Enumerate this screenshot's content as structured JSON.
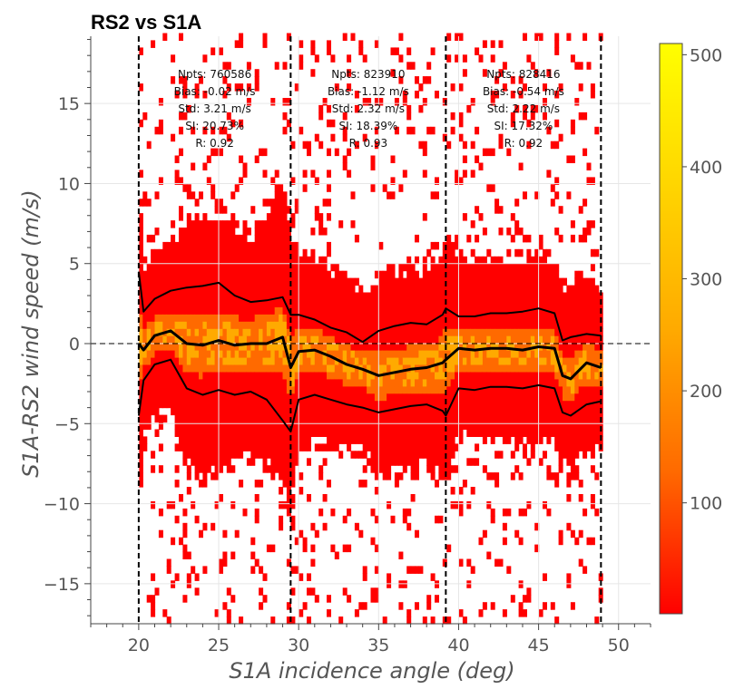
{
  "chart_data": {
    "type": "heatmap",
    "title": "RS2 vs S1A",
    "xlabel": "S1A incidence angle (deg)",
    "ylabel": "S1A-RS2 wind speed (m/s)",
    "xlim": [
      17,
      52
    ],
    "ylim": [
      -17.5,
      19.2
    ],
    "x_ticks": [
      20,
      25,
      30,
      35,
      40,
      45,
      50
    ],
    "y_ticks": [
      -15,
      -10,
      -5,
      0,
      5,
      10,
      15
    ],
    "grid": true,
    "colorbar": {
      "range": [
        1,
        510
      ],
      "ticks": [
        100,
        200,
        300,
        400,
        500
      ],
      "colormap": [
        "#ff0000",
        "#ff6a00",
        "#ffaa00",
        "#ffd500",
        "#ffff00"
      ]
    },
    "vertical_lines": [
      20,
      29.5,
      39.2,
      48.9
    ],
    "zero_line": 0,
    "beams": [
      {
        "range": [
          20,
          29.5
        ],
        "stats": [
          "Npts: 760586",
          "Bias: -0.02 m/s",
          "Std: 3.21 m/s",
          "SI: 20.73%",
          "R: 0.92"
        ]
      },
      {
        "range": [
          29.5,
          39.2
        ],
        "stats": [
          "Npts: 823910",
          "Bias: -1.12 m/s",
          "Std: 2.32 m/s",
          "SI: 18.39%",
          "R: 0.93"
        ]
      },
      {
        "range": [
          39.2,
          48.9
        ],
        "stats": [
          "Npts: 828416",
          "Bias: -0.54 m/s",
          "Std: 2.22 m/s",
          "SI: 17.32%",
          "R: 0.92"
        ]
      }
    ],
    "series": [
      {
        "role": "mean",
        "x": [
          20.0,
          20.3,
          21.0,
          22.0,
          23.0,
          24.0,
          25.0,
          26.0,
          27.0,
          28.0,
          29.0,
          29.5,
          30.0,
          31.0,
          32.0,
          33.0,
          34.0,
          35.0,
          36.0,
          37.0,
          38.0,
          39.0,
          39.2,
          40.0,
          41.0,
          42.0,
          43.0,
          44.0,
          45.0,
          46.0,
          46.5,
          47.0,
          48.0,
          48.9
        ],
        "y": [
          0.0,
          -0.4,
          0.5,
          0.8,
          0.0,
          -0.1,
          0.2,
          -0.1,
          0.0,
          0.0,
          0.4,
          -1.5,
          -0.5,
          -0.4,
          -0.8,
          -1.3,
          -1.6,
          -2.0,
          -1.8,
          -1.6,
          -1.5,
          -1.2,
          -1.0,
          -0.3,
          -0.4,
          -0.3,
          -0.3,
          -0.4,
          -0.2,
          -0.3,
          -2.0,
          -2.2,
          -1.2,
          -1.5
        ]
      },
      {
        "role": "upper (mean + std)",
        "x": [
          20.0,
          20.3,
          21.0,
          22.0,
          23.0,
          24.0,
          25.0,
          26.0,
          27.0,
          28.0,
          29.0,
          29.5,
          30.0,
          31.0,
          32.0,
          33.0,
          34.0,
          35.0,
          36.0,
          37.0,
          38.0,
          39.0,
          39.2,
          40.0,
          41.0,
          42.0,
          43.0,
          44.0,
          45.0,
          46.0,
          46.5,
          47.0,
          48.0,
          48.9
        ],
        "y": [
          4.5,
          2.0,
          2.8,
          3.3,
          3.5,
          3.6,
          3.8,
          3.0,
          2.6,
          2.7,
          2.9,
          1.8,
          1.8,
          1.5,
          1.0,
          0.7,
          0.1,
          0.8,
          1.1,
          1.3,
          1.2,
          1.8,
          2.2,
          1.7,
          1.7,
          1.9,
          1.9,
          2.0,
          2.2,
          1.9,
          0.2,
          0.4,
          0.6,
          0.5
        ]
      },
      {
        "role": "lower (mean - std)",
        "x": [
          20.0,
          20.3,
          21.0,
          22.0,
          23.0,
          24.0,
          25.0,
          26.0,
          27.0,
          28.0,
          29.0,
          29.5,
          30.0,
          31.0,
          32.0,
          33.0,
          34.0,
          35.0,
          36.0,
          37.0,
          38.0,
          39.0,
          39.2,
          40.0,
          41.0,
          42.0,
          43.0,
          44.0,
          45.0,
          46.0,
          46.5,
          47.0,
          48.0,
          48.9
        ],
        "y": [
          -4.5,
          -2.3,
          -1.3,
          -1.0,
          -2.8,
          -3.2,
          -2.9,
          -3.2,
          -3.0,
          -3.5,
          -4.8,
          -5.5,
          -3.5,
          -3.2,
          -3.5,
          -3.8,
          -4.0,
          -4.3,
          -4.1,
          -3.9,
          -3.8,
          -4.2,
          -4.5,
          -2.8,
          -2.9,
          -2.7,
          -2.7,
          -2.8,
          -2.6,
          -2.8,
          -4.3,
          -4.5,
          -3.8,
          -3.6
        ]
      }
    ]
  }
}
